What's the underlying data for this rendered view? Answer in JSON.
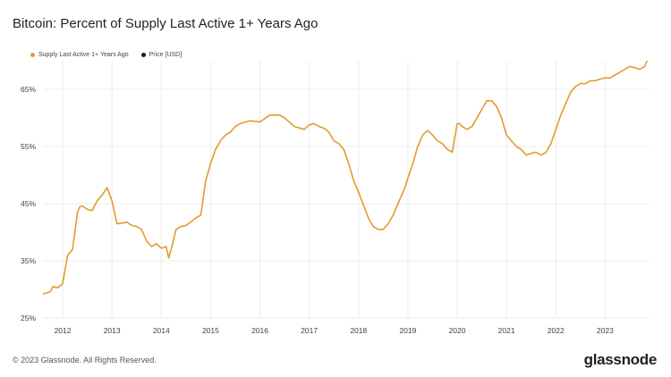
{
  "title": "Bitcoin: Percent of Supply Last Active 1+ Years Ago",
  "footer": "© 2023 Glassnode. All Rights Reserved.",
  "logo_text": "glassnode",
  "colors": {
    "series": "#e39b2f",
    "price": "#1a1a1a",
    "grid": "#ececec",
    "axis_text": "#444444"
  },
  "chart_data": {
    "type": "line",
    "title": "Bitcoin: Percent of Supply Last Active 1+ Years Ago",
    "xlabel": "",
    "ylabel": "",
    "xlim": [
      2011.6,
      2023.9
    ],
    "ylim": [
      25,
      70
    ],
    "grid": true,
    "legend_placement": "top-left",
    "y_ticks": [
      25,
      35,
      45,
      55,
      65
    ],
    "y_tick_labels": [
      "25%",
      "35%",
      "45%",
      "55%",
      "65%"
    ],
    "x_ticks": [
      2012,
      2013,
      2014,
      2015,
      2016,
      2017,
      2018,
      2019,
      2020,
      2021,
      2022,
      2023
    ],
    "x_tick_labels": [
      "2012",
      "2013",
      "2014",
      "2015",
      "2016",
      "2017",
      "2018",
      "2019",
      "2020",
      "2021",
      "2022",
      "2023"
    ],
    "series": [
      {
        "name": "Supply Last Active 1+ Years Ago",
        "x": [
          2011.6,
          2011.75,
          2011.8,
          2011.9,
          2012.0,
          2012.1,
          2012.2,
          2012.3,
          2012.35,
          2012.4,
          2012.5,
          2012.6,
          2012.7,
          2012.8,
          2012.9,
          2013.0,
          2013.1,
          2013.2,
          2013.3,
          2013.4,
          2013.5,
          2013.6,
          2013.7,
          2013.8,
          2013.9,
          2014.0,
          2014.1,
          2014.15,
          2014.2,
          2014.3,
          2014.4,
          2014.5,
          2014.6,
          2014.7,
          2014.8,
          2014.9,
          2015.0,
          2015.1,
          2015.2,
          2015.3,
          2015.4,
          2015.5,
          2015.6,
          2015.8,
          2016.0,
          2016.2,
          2016.4,
          2016.5,
          2016.7,
          2016.9,
          2017.0,
          2017.1,
          2017.2,
          2017.3,
          2017.4,
          2017.5,
          2017.6,
          2017.7,
          2017.8,
          2017.9,
          2018.0,
          2018.2,
          2018.3,
          2018.4,
          2018.5,
          2018.6,
          2018.7,
          2018.8,
          2018.85,
          2018.9,
          2018.95,
          2019.0,
          2019.1,
          2019.2,
          2019.3,
          2019.4,
          2019.5,
          2019.55,
          2019.6,
          2019.7,
          2019.8,
          2019.9,
          2020.0,
          2020.05,
          2020.1,
          2020.2,
          2020.3,
          2020.4,
          2020.5,
          2020.6,
          2020.7,
          2020.8,
          2020.9,
          2021.0,
          2021.1,
          2021.2,
          2021.3,
          2021.4,
          2021.5,
          2021.6,
          2021.7,
          2021.8,
          2021.9,
          2022.0,
          2022.1,
          2022.2,
          2022.3,
          2022.4,
          2022.5,
          2022.6,
          2022.7,
          2022.8,
          2022.9,
          2023.0,
          2023.1,
          2023.2,
          2023.3,
          2023.4,
          2023.5,
          2023.6,
          2023.7,
          2023.8,
          2023.85
        ],
        "y": [
          29.2,
          29.6,
          30.5,
          30.3,
          31.0,
          36.0,
          37.0,
          43.5,
          44.5,
          44.6,
          44.0,
          43.8,
          45.5,
          46.5,
          47.8,
          45.5,
          41.5,
          41.6,
          41.8,
          41.2,
          41.0,
          40.5,
          38.5,
          37.5,
          38.0,
          37.2,
          37.5,
          35.5,
          37.0,
          40.5,
          41.0,
          41.2,
          41.8,
          42.5,
          43.0,
          49.0,
          52.0,
          54.5,
          56.0,
          57.0,
          57.5,
          58.5,
          59.0,
          59.5,
          59.3,
          60.5,
          60.5,
          60.0,
          58.5,
          58.0,
          58.8,
          59.0,
          58.5,
          58.2,
          57.5,
          56.0,
          55.5,
          54.5,
          52.0,
          49.0,
          47.0,
          42.5,
          41.0,
          40.5,
          40.5,
          41.5,
          43.0,
          45.0,
          46.0,
          47.0,
          48.0,
          49.5,
          52.0,
          55.0,
          57.0,
          57.8,
          57.0,
          56.5,
          56.0,
          55.5,
          54.5,
          54.0,
          59.0,
          59.0,
          58.5,
          58.0,
          58.5,
          60.0,
          61.5,
          63.0,
          63.0,
          62.0,
          60.0,
          57.0,
          56.0,
          55.0,
          54.5,
          53.5,
          53.8,
          54.0,
          53.5,
          54.0,
          55.5,
          58.0,
          60.5,
          62.5,
          64.5,
          65.5,
          66.0,
          66.0,
          66.5,
          66.5,
          66.8,
          67.0,
          67.0,
          67.5,
          68.0,
          68.5,
          69.0,
          68.8,
          68.5,
          69.0,
          70.0
        ]
      },
      {
        "name": "Price [USD]",
        "x": [],
        "y": []
      }
    ]
  }
}
